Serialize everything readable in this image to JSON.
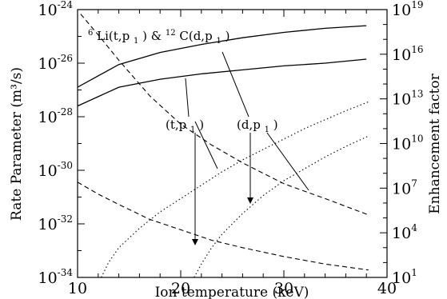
{
  "chart_data": {
    "type": "line",
    "title": "",
    "xlabel": "Ion temperature (keV)",
    "ylabel": "Rate Parameter (m³/s)",
    "y2label": "Enhancement factor",
    "xlim": [
      10,
      40
    ],
    "ylim_exp": [
      -34,
      -24
    ],
    "y2lim_exp": [
      1,
      19
    ],
    "y_scale": "log",
    "y2_scale": "log",
    "grid": false,
    "xticks": [
      "10",
      "20",
      "30",
      "40"
    ],
    "yticks": [
      {
        "base": "10",
        "exp": "-24"
      },
      {
        "base": "10",
        "exp": "-26"
      },
      {
        "base": "10",
        "exp": "-28"
      },
      {
        "base": "10",
        "exp": "-30"
      },
      {
        "base": "10",
        "exp": "-32"
      },
      {
        "base": "10",
        "exp": "-34"
      }
    ],
    "y2ticks": [
      {
        "base": "10",
        "exp": "19"
      },
      {
        "base": "10",
        "exp": "16"
      },
      {
        "base": "10",
        "exp": "13"
      },
      {
        "base": "10",
        "exp": "10"
      },
      {
        "base": "10",
        "exp": "7"
      },
      {
        "base": "10",
        "exp": "4"
      },
      {
        "base": "10",
        "exp": "1"
      }
    ],
    "series": [
      {
        "style": "solid",
        "axis": "left",
        "group": "d,p1",
        "x": [
          10,
          14,
          18,
          22,
          26,
          30,
          34,
          38
        ],
        "log_y": [
          -26.9,
          -26.05,
          -25.6,
          -25.3,
          -25.05,
          -24.85,
          -24.7,
          -24.6
        ]
      },
      {
        "style": "solid",
        "axis": "left",
        "group": "t,p1",
        "x": [
          10,
          14,
          18,
          22,
          26,
          30,
          34,
          38
        ],
        "log_y": [
          -27.6,
          -26.9,
          -26.6,
          -26.4,
          -26.25,
          -26.1,
          -26.0,
          -25.85
        ]
      },
      {
        "style": "dashed",
        "axis": "right",
        "group": "d,p1",
        "x": [
          10.3,
          12,
          14,
          17,
          20,
          23,
          26,
          30,
          34,
          38.2
        ],
        "log_y": [
          18.7,
          17.3,
          15.6,
          13.2,
          11.3,
          9.9,
          8.7,
          7.3,
          6.3,
          5.2
        ]
      },
      {
        "style": "dashed",
        "axis": "right",
        "group": "t,p1",
        "x": [
          10,
          12,
          14,
          17,
          20,
          23,
          26,
          30,
          34,
          38.2
        ],
        "log_y": [
          7.4,
          6.6,
          5.9,
          4.9,
          4.2,
          3.5,
          3.0,
          2.4,
          1.9,
          1.5
        ]
      },
      {
        "style": "dotted",
        "axis": "right",
        "group": "t,p1",
        "x": [
          12.3,
          13,
          14,
          16,
          18,
          20,
          22,
          24,
          26,
          28,
          30,
          32,
          34,
          36,
          38.2
        ],
        "log_y": [
          1.0,
          2.0,
          3.0,
          4.3,
          5.4,
          6.3,
          7.2,
          8.1,
          8.9,
          9.6,
          10.3,
          11.0,
          11.6,
          12.2,
          12.8
        ]
      },
      {
        "style": "dotted",
        "axis": "right",
        "group": "d,p1",
        "x": [
          21.3,
          22,
          23,
          24,
          26,
          28,
          30,
          32,
          34,
          36,
          38.2
        ],
        "log_y": [
          1.0,
          1.9,
          3.0,
          3.9,
          5.3,
          6.5,
          7.5,
          8.3,
          9.1,
          9.8,
          10.5
        ]
      }
    ],
    "annotations": {
      "top": {
        "sup1": "6",
        "a": "Li(t,p",
        "sub1": "1",
        "b": ") & ",
        "sup2": "12",
        "c": "C(d,p",
        "sub2": "1",
        "d": ")"
      },
      "tp1": {
        "a": "(t,p",
        "sub": "1",
        "b": ")"
      },
      "dp1": {
        "a": "(d,p",
        "sub": "1",
        "b": ")"
      }
    }
  }
}
